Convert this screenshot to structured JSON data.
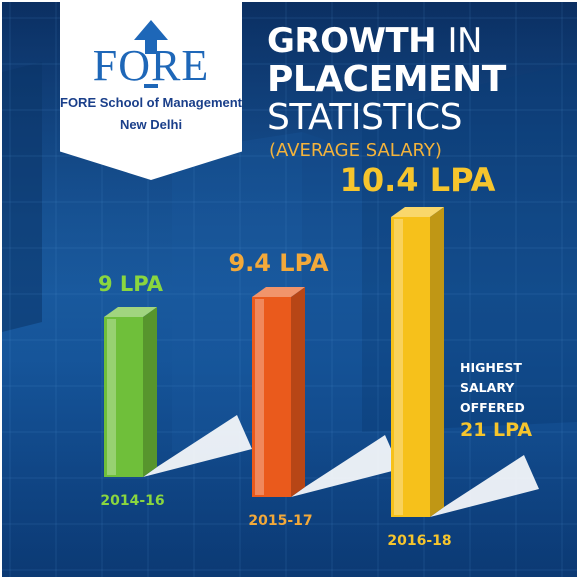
{
  "logo": {
    "wordmark": "FORE",
    "school_name": "FORE School of Management",
    "city": "New Delhi"
  },
  "title": {
    "line1_bold": "GROWTH",
    "line1_light": "IN",
    "line2": "PLACEMENT",
    "line3": "STATISTICS",
    "subtitle": "(AVERAGE SALARY)"
  },
  "highlight": {
    "line1": "HIGHEST",
    "line2": "SALARY",
    "line3": "OFFERED",
    "value": "21 LPA"
  },
  "chart_data": {
    "type": "bar",
    "title": "GROWTH IN PLACEMENT STATISTICS",
    "subtitle": "(AVERAGE SALARY)",
    "categories": [
      "2014-16",
      "2015-17",
      "2016-18"
    ],
    "values": [
      9,
      9.4,
      10.4
    ],
    "value_labels": [
      "9 LPA",
      "9.4 LPA",
      "10.4 LPA"
    ],
    "units": "LPA",
    "xlabel": "",
    "ylabel": "",
    "bar_colors": [
      "#6fbf3a",
      "#ea5a1c",
      "#f6c11b"
    ],
    "label_colors": [
      "#8ad63f",
      "#f3a93a",
      "#f6c52d"
    ],
    "category_label_colors": [
      "#8ad63f",
      "#f3a93a",
      "#f6c52d"
    ],
    "grid": true,
    "legend": "none"
  }
}
